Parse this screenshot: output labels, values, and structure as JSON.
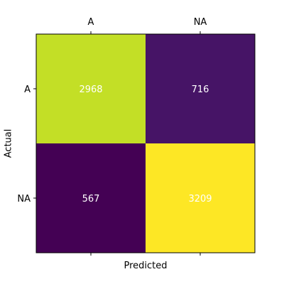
{
  "chart_data": {
    "type": "heatmap",
    "title": "",
    "xlabel": "Predicted",
    "ylabel": "Actual",
    "x_categories": [
      "A",
      "NA"
    ],
    "y_categories": [
      "A",
      "NA"
    ],
    "values": [
      [
        2968,
        716
      ],
      [
        567,
        3209
      ]
    ],
    "colormap": "viridis",
    "value_range": [
      567,
      3209
    ],
    "cell_text_color": "#ffffff",
    "x_tick_position": "top",
    "grid": false
  }
}
